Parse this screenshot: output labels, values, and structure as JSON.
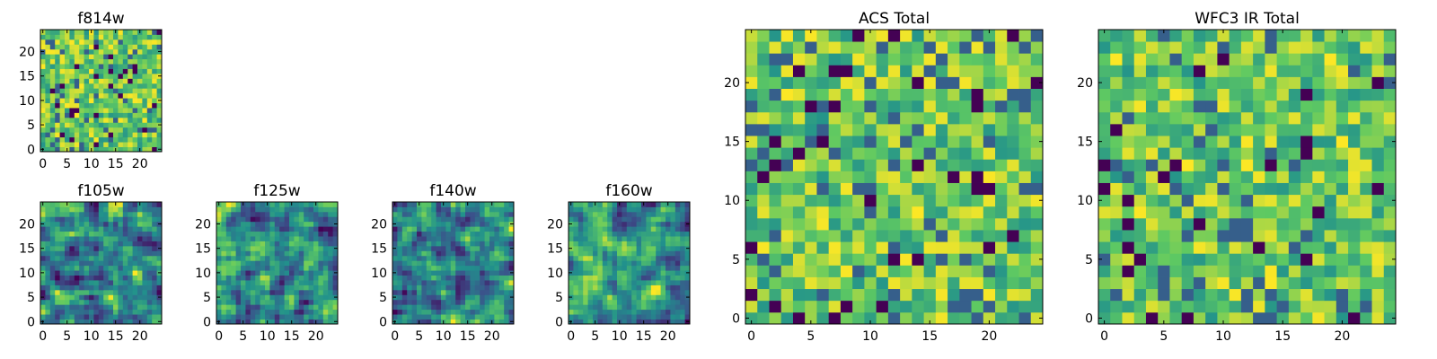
{
  "figure": {
    "colormap": "viridis",
    "colormap_stops": [
      "#440154",
      "#3b528b",
      "#21918c",
      "#5ec962",
      "#fde725"
    ],
    "background": "#ffffff"
  },
  "chart_data": [
    {
      "type": "heatmap",
      "title": "f814w",
      "xlim": [
        0,
        25
      ],
      "ylim": [
        0,
        25
      ],
      "xticks": [
        0,
        5,
        10,
        15,
        20
      ],
      "yticks": [
        0,
        5,
        10,
        15,
        20
      ],
      "grid_size": [
        25,
        25
      ],
      "seed": 11,
      "pattern": "noise",
      "values_note_visible": false
    },
    {
      "type": "heatmap",
      "title": "f105w",
      "xlim": [
        0,
        25
      ],
      "ylim": [
        0,
        25
      ],
      "xticks": [
        0,
        5,
        10,
        15,
        20
      ],
      "yticks": [
        0,
        5,
        10,
        15,
        20
      ],
      "grid_size": [
        25,
        25
      ],
      "seed": 23,
      "pattern": "smooth"
    },
    {
      "type": "heatmap",
      "title": "f125w",
      "xlim": [
        0,
        25
      ],
      "ylim": [
        0,
        25
      ],
      "xticks": [
        0,
        5,
        10,
        15,
        20
      ],
      "yticks": [
        0,
        5,
        10,
        15,
        20
      ],
      "grid_size": [
        25,
        25
      ],
      "seed": 37,
      "pattern": "smooth"
    },
    {
      "type": "heatmap",
      "title": "f140w",
      "xlim": [
        0,
        25
      ],
      "ylim": [
        0,
        25
      ],
      "xticks": [
        0,
        5,
        10,
        15,
        20
      ],
      "yticks": [
        0,
        5,
        10,
        15,
        20
      ],
      "grid_size": [
        25,
        25
      ],
      "seed": 41,
      "pattern": "smooth"
    },
    {
      "type": "heatmap",
      "title": "f160w",
      "xlim": [
        0,
        25
      ],
      "ylim": [
        0,
        25
      ],
      "xticks": [
        0,
        5,
        10,
        15,
        20
      ],
      "yticks": [
        0,
        5,
        10,
        15,
        20
      ],
      "grid_size": [
        25,
        25
      ],
      "seed": 53,
      "pattern": "smooth"
    },
    {
      "type": "heatmap",
      "title": "ACS Total",
      "xlim": [
        0,
        25
      ],
      "ylim": [
        0,
        25
      ],
      "xticks": [
        0,
        5,
        10,
        15,
        20
      ],
      "yticks": [
        0,
        5,
        10,
        15,
        20
      ],
      "grid_size": [
        25,
        25
      ],
      "seed": 67,
      "pattern": "noise"
    },
    {
      "type": "heatmap",
      "title": "WFC3 IR Total",
      "xlim": [
        0,
        25
      ],
      "ylim": [
        0,
        25
      ],
      "xticks": [
        0,
        5,
        10,
        15,
        20
      ],
      "yticks": [
        0,
        5,
        10,
        15,
        20
      ],
      "grid_size": [
        25,
        25
      ],
      "seed": 79,
      "pattern": "noise"
    }
  ]
}
